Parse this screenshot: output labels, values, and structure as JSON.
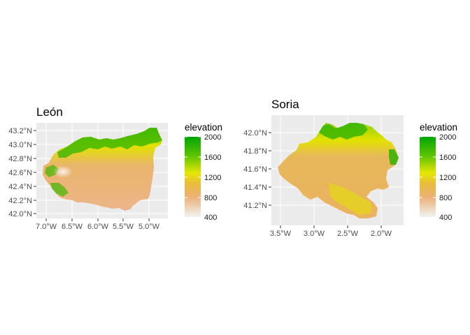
{
  "figure": {
    "panels": [
      {
        "title": "León",
        "x_ticks": [
          "7.0°W",
          "6.5°W",
          "6.0°W",
          "5.5°W",
          "5.0°W"
        ],
        "y_ticks": [
          "42.0°N",
          "42.2°N",
          "42.4°N",
          "42.6°N",
          "42.8°N",
          "43.0°N",
          "43.2°N"
        ],
        "legend": {
          "title": "elevation",
          "labels": [
            "2000",
            "1600",
            "1200",
            "800",
            "400"
          ]
        }
      },
      {
        "title": "Soria",
        "x_ticks": [
          "3.5°W",
          "3.0°W",
          "2.5°W",
          "2.0°W"
        ],
        "y_ticks": [
          "41.2°N",
          "41.4°N",
          "41.6°N",
          "41.8°N",
          "42.0°N"
        ],
        "legend": {
          "title": "elevation",
          "labels": [
            "2000",
            "1600",
            "1200",
            "800",
            "400"
          ]
        }
      }
    ],
    "colors": {
      "panel_bg": "#ebebeb",
      "grid": "#ffffff",
      "scale_high": "#00a600",
      "scale_mid": "#e6e600",
      "scale_low_mid": "#e9bd3a",
      "scale_tan": "#ecb176",
      "scale_low": "#f2f2f2"
    }
  }
}
